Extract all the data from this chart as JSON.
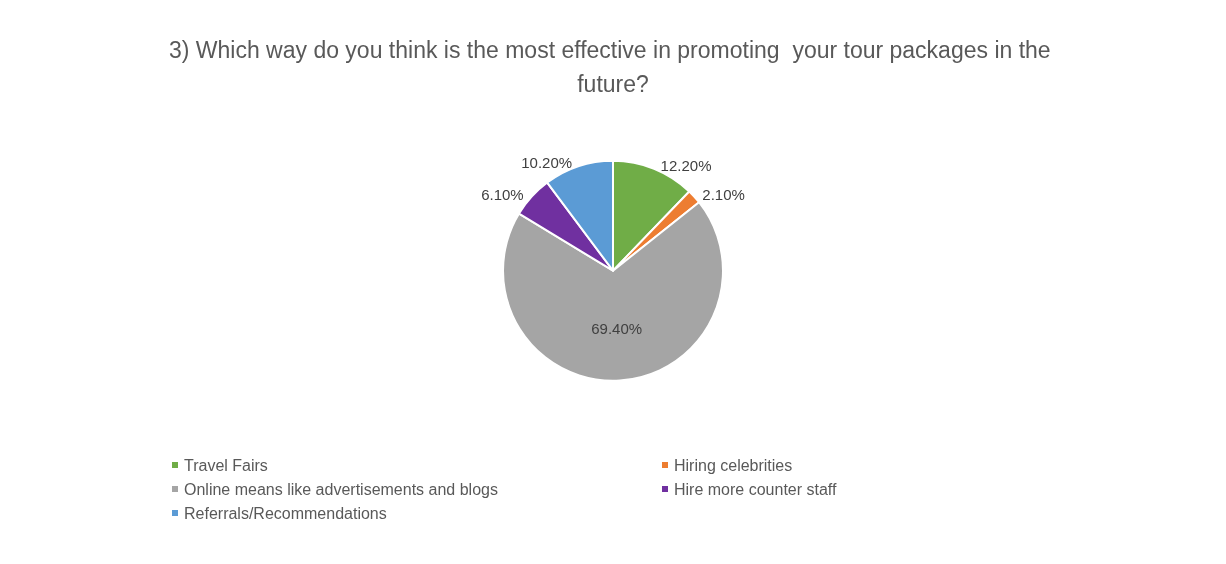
{
  "chart_data": {
    "type": "pie",
    "title": "3) Which way do you think is the most effective in promoting  your tour packages in the future?",
    "categories": [
      "Travel Fairs",
      "Hiring celebrities",
      "Online means like advertisements and blogs",
      "Hire more counter staff",
      "Referrals/Recommendations"
    ],
    "values": [
      12.2,
      2.1,
      69.4,
      6.1,
      10.2
    ],
    "colors": [
      "#70ad47",
      "#ed7d31",
      "#a5a5a5",
      "#7030a0",
      "#5b9bd5"
    ],
    "value_labels": [
      "12.20%",
      "2.10%",
      "69.40%",
      "6.10%",
      "10.20%"
    ],
    "legend": "bottom"
  }
}
